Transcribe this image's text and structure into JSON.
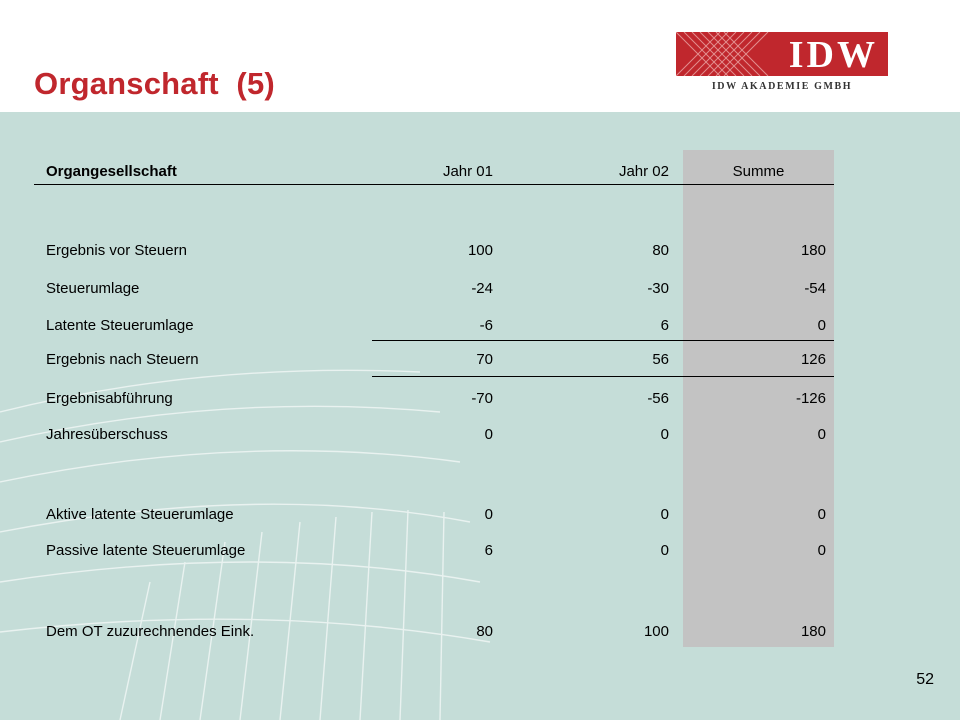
{
  "slide": {
    "title": "Organschaft  (5)",
    "page_number": "52",
    "logo": {
      "mark": "IDW",
      "subtitle": "IDW AKADEMIE GMBH"
    },
    "colors": {
      "brand_red": "#c0272d",
      "panel": "#c5ddd8",
      "highlight_column": "#c3c3c3"
    }
  },
  "table": {
    "headers": [
      "Organgesellschaft",
      "Jahr 01",
      "Jahr 02",
      "Summe"
    ],
    "rows": [
      {
        "label": "Ergebnis vor Steuern",
        "j1": "100",
        "j2": "80",
        "sum": "180"
      },
      {
        "label": "Steuerumlage",
        "j1": "-24",
        "j2": "-30",
        "sum": "-54"
      },
      {
        "label": "Latente Steuerumlage",
        "j1": "-6",
        "j2": "6",
        "sum": "0"
      },
      {
        "label": "Ergebnis nach Steuern",
        "j1": "70",
        "j2": "56",
        "sum": "126"
      },
      {
        "label": "Ergebnisabführung",
        "j1": "-70",
        "j2": "-56",
        "sum": "-126"
      },
      {
        "label": "Jahresüberschuss",
        "j1": "0",
        "j2": "0",
        "sum": "0"
      },
      {
        "label": "Aktive latente Steuerumlage",
        "j1": "0",
        "j2": "0",
        "sum": "0"
      },
      {
        "label": "Passive latente Steuerumlage",
        "j1": "6",
        "j2": "0",
        "sum": "0"
      },
      {
        "label": "Dem OT zuzurechnendes Eink.",
        "j1": "80",
        "j2": "100",
        "sum": "180"
      }
    ]
  }
}
